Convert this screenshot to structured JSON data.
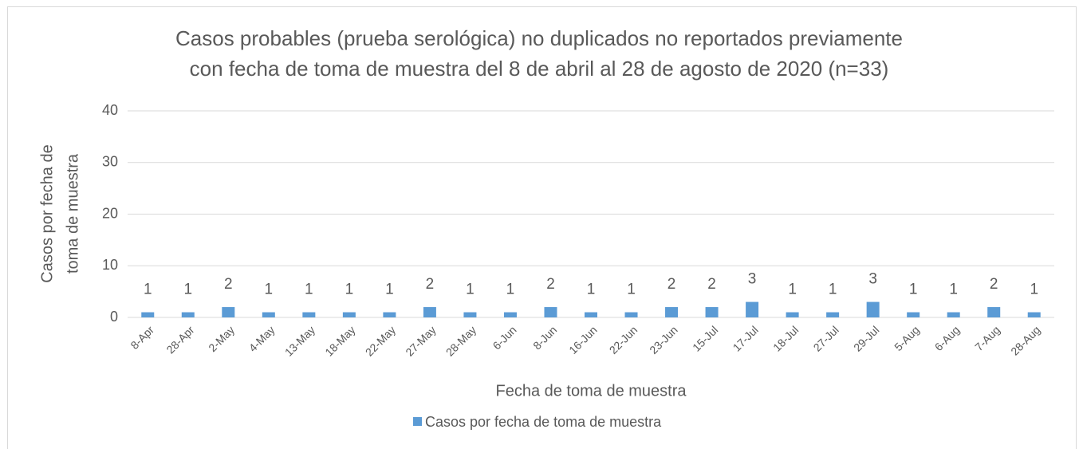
{
  "chart_data": {
    "type": "bar",
    "title": [
      "Casos probables (prueba serológica) no duplicados no reportados previamente",
      "con fecha de toma de muestra del 8 de abril al 28 de agosto de 2020 (n=33)"
    ],
    "y_label": [
      "Casos por fecha de",
      "toma de muestra"
    ],
    "x_label": "Fecha de toma de muestra",
    "categories": [
      "8-Apr",
      "28-Apr",
      "2-May",
      "4-May",
      "13-May",
      "18-May",
      "22-May",
      "27-May",
      "28-May",
      "6-Jun",
      "8-Jun",
      "16-Jun",
      "22-Jun",
      "23-Jun",
      "15-Jul",
      "17-Jul",
      "18-Jul",
      "27-Jul",
      "29-Jul",
      "5-Aug",
      "6-Aug",
      "7-Aug",
      "28-Aug"
    ],
    "series": [
      {
        "name": "Casos por fecha de toma de muestra",
        "color": "#5b9bd5",
        "values": [
          1,
          1,
          2,
          1,
          1,
          1,
          1,
          2,
          1,
          1,
          2,
          1,
          1,
          2,
          2,
          3,
          1,
          1,
          3,
          1,
          1,
          2,
          1
        ]
      }
    ],
    "ylim": [
      0,
      40
    ],
    "yticks": [
      0,
      10,
      20,
      30,
      40
    ],
    "grid": true,
    "legend": "bottom",
    "data_labels": true
  }
}
